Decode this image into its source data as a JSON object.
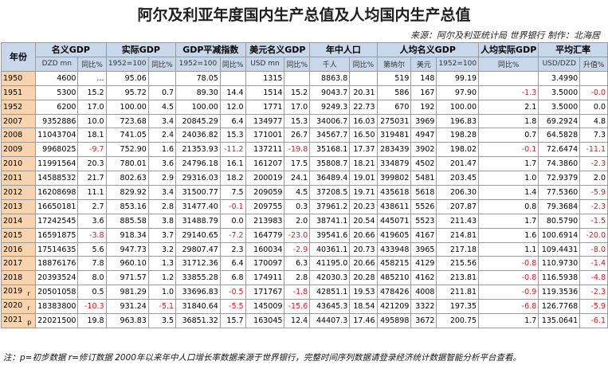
{
  "title": "阿尔及利亚年度国内生产总值及人均国内生产总值",
  "source": "来源：阿尔及利亚统计局 世界银行 制作：北海居",
  "table": {
    "year_header": "年份",
    "groups": [
      "名义GDP",
      "实际GDP",
      "GDP平减指数",
      "美元名义GDP",
      "年中人口",
      "人均名义GDP",
      "人均实际GDP",
      "平均汇率"
    ],
    "units": [
      "DZD mn",
      "同比%",
      "1952=100",
      "同比%",
      "1952=100",
      "同比%",
      "USD mn",
      "同比%",
      "千人",
      "同比%",
      "第纳尔",
      "美元",
      "1952=100",
      "同比%",
      "USD/DZD",
      "升值%"
    ],
    "rows": [
      {
        "year": "1950",
        "cells": [
          "4600",
          "…",
          "95.06",
          null,
          "78.05",
          null,
          "1315",
          null,
          "8863.8",
          null,
          "519",
          "148",
          "99.19",
          null,
          "3.4990",
          null
        ]
      },
      {
        "year": "1951",
        "cells": [
          "5300",
          "15.2",
          "95.72",
          "0.7",
          "89.30",
          "14.4",
          "1514",
          "15.2",
          "9043.7",
          "20.31",
          "586",
          "167",
          "97.90",
          "-1.3",
          "3.5000",
          "-0.0"
        ]
      },
      {
        "year": "1952",
        "cells": [
          "6200",
          "17.0",
          "100.00",
          "4.5",
          "100.00",
          "12.0",
          "1771",
          "17.0",
          "9249.3",
          "22.73",
          "670",
          "192",
          "100.00",
          "2.1",
          "3.5000",
          "0.0"
        ]
      },
      {
        "year": "2007",
        "cells": [
          "9352886",
          "10.0",
          "723.68",
          "3.4",
          "20845.29",
          "6.4",
          "134977",
          "15.3",
          "34006.7",
          "16.03",
          "275031",
          "3969",
          "196.83",
          "1.8",
          "69.2924",
          "4.8"
        ]
      },
      {
        "year": "2008",
        "cells": [
          "11043704",
          "18.1",
          "741.05",
          "2.4",
          "24036.82",
          "15.3",
          "171001",
          "26.7",
          "34567.7",
          "16.50",
          "319481",
          "4947",
          "198.28",
          "0.7",
          "64.5828",
          "7.3"
        ]
      },
      {
        "year": "2009",
        "cells": [
          "9968025",
          "-9.7",
          "752.90",
          "1.6",
          "21353.93",
          "-11.2",
          "137211",
          "-19.8",
          "35168.1",
          "17.37",
          "283439",
          "3902",
          "198.02",
          "-0.1",
          "72.6474",
          "-11.1"
        ]
      },
      {
        "year": "2010",
        "cells": [
          "11991564",
          "20.3",
          "780.01",
          "3.6",
          "24796.18",
          "16.1",
          "161207",
          "17.5",
          "35808.7",
          "18.21",
          "334879",
          "4502",
          "201.47",
          "1.7",
          "74.3860",
          "-2.3"
        ]
      },
      {
        "year": "2011",
        "cells": [
          "14588532",
          "21.7",
          "802.63",
          "2.9",
          "29316.03",
          "18.2",
          "200019",
          "24.1",
          "36489.4",
          "19.01",
          "399802",
          "5481",
          "203.45",
          "1.0",
          "72.9379",
          "2.0"
        ]
      },
      {
        "year": "2012",
        "cells": [
          "16208698",
          "11.1",
          "829.92",
          "3.4",
          "31500.77",
          "7.5",
          "209059",
          "4.5",
          "37208.5",
          "19.71",
          "435618",
          "5618",
          "206.30",
          "1.4",
          "77.5360",
          "-5.9"
        ]
      },
      {
        "year": "2013",
        "cells": [
          "16650181",
          "2.7",
          "853.16",
          "2.8",
          "31477.40",
          "-0.1",
          "209755",
          "0.3",
          "37961.2",
          "20.23",
          "438611",
          "5526",
          "207.87",
          "0.8",
          "79.3684",
          "-2.3"
        ]
      },
      {
        "year": "2014",
        "cells": [
          "17242545",
          "3.6",
          "885.58",
          "3.8",
          "31488.79",
          "0.0",
          "213983",
          "2.0",
          "38741.1",
          "20.54",
          "445071",
          "5523",
          "211.43",
          "1.7",
          "80.5790",
          "-1.5"
        ]
      },
      {
        "year": "2015",
        "cells": [
          "16591875",
          "-3.8",
          "918.34",
          "3.7",
          "29140.65",
          "-7.2",
          "164779",
          "-23.0",
          "39541.6",
          "20.66",
          "419605",
          "4167",
          "214.81",
          "1.6",
          "100.6914",
          "-20.0"
        ]
      },
      {
        "year": "2016",
        "cells": [
          "17514635",
          "5.6",
          "947.73",
          "3.2",
          "29807.47",
          "2.3",
          "160034",
          "-2.9",
          "40361.1",
          "20.73",
          "433948",
          "3965",
          "217.18",
          "1.1",
          "109.4431",
          "-8.0"
        ]
      },
      {
        "year": "2017",
        "cells": [
          "18876176",
          "7.8",
          "960.10",
          "1.3",
          "31712.36",
          "6.4",
          "170097",
          "6.3",
          "41195.0",
          "20.66",
          "458215",
          "4129",
          "215.56",
          "-0.8",
          "110.9730",
          "-1.4"
        ]
      },
      {
        "year": "2018",
        "cells": [
          "20393524",
          "8.0",
          "971.57",
          "1.2",
          "33855.28",
          "6.8",
          "174911",
          "2.8",
          "42030.3",
          "20.28",
          "485210",
          "4162",
          "213.81",
          "-0.8",
          "116.5938",
          "-4.8"
        ]
      },
      {
        "year": "2019",
        "flag": "r",
        "cells": [
          "20501058",
          "0.5",
          "981.29",
          "1.0",
          "33696.83",
          "-0.5",
          "171767",
          "-1.8",
          "42851.1",
          "19.53",
          "478426",
          "4008",
          "211.81",
          "-0.9",
          "119.3536",
          "-2.3"
        ]
      },
      {
        "year": "2020",
        "flag": "r",
        "cells": [
          "18383800",
          "-10.3",
          "931.24",
          "-5.1",
          "31840.64",
          "-5.5",
          "145009",
          "-15.6",
          "43645.3",
          "18.54",
          "421209",
          "3322",
          "197.35",
          "-6.8",
          "126.7768",
          "-5.9"
        ]
      },
      {
        "year": "2021",
        "flag": "p",
        "cells": [
          "22021500",
          "19.8",
          "963.83",
          "3.5",
          "36851.32",
          "15.7",
          "163045",
          "12.4",
          "44407.3",
          "17.46",
          "495898",
          "3672",
          "200.75",
          "1.7",
          "135.0641",
          "-6.1"
        ]
      }
    ]
  },
  "note": "注：p=初步数据 r=修订数据 2000年以来年中人口增长率数据来源于世界银行，完整时间序列数据请登录经济统计数据智能分析平台查看。"
}
